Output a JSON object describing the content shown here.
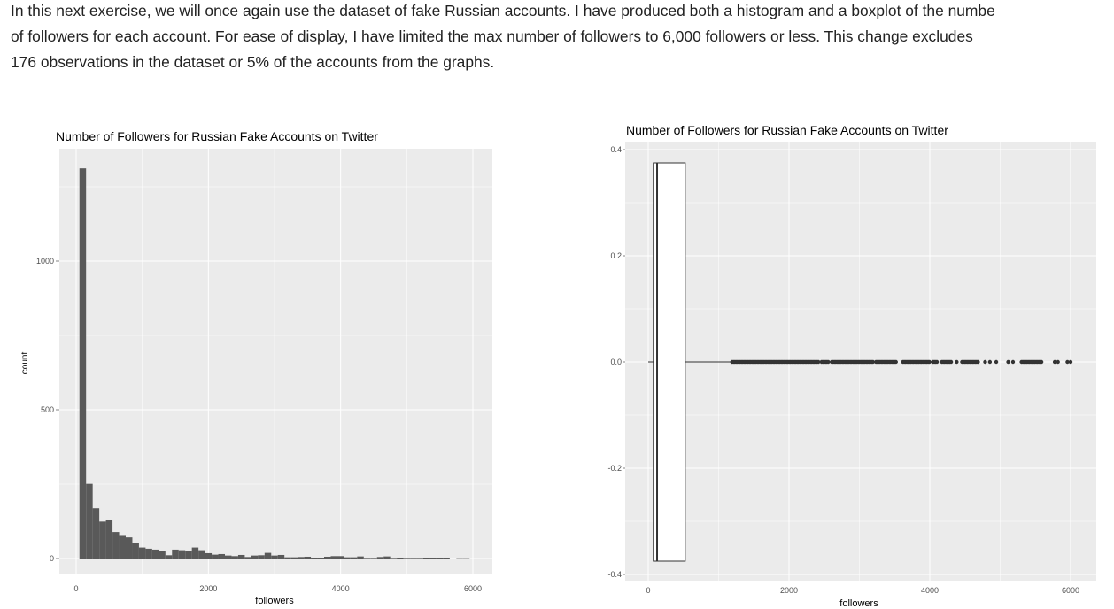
{
  "intro": {
    "lines": [
      "In this next exercise, we will once again use the dataset of fake Russian accounts. I have produced both a histogram and a boxplot of the numbe",
      "of followers for each account. For ease of display, I have limited the max number of followers to 6,000 followers or less. This change excludes",
      "176 observations in the dataset or 5% of the accounts from the graphs."
    ]
  },
  "colors": {
    "panel": "#ebebeb",
    "grid": "#ffffff",
    "bar": "#595959",
    "box_fill": "#ffffff",
    "box_line": "#333333"
  },
  "chart_data": [
    {
      "type": "bar",
      "subtype": "histogram",
      "title": "Number of Followers for Russian Fake Accounts on Twitter",
      "xlabel": "followers",
      "ylabel": "count",
      "xlim": [
        -300,
        6300
      ],
      "ylim": [
        -60,
        1380
      ],
      "xticks": [
        "0",
        "2000",
        "4000",
        "6000"
      ],
      "yticks": [
        "0",
        "500",
        "1000"
      ],
      "bin_width": 100,
      "bin_start": 50,
      "counts": [
        1312,
        251,
        169,
        124,
        130,
        89,
        79,
        71,
        52,
        37,
        33,
        30,
        25,
        11,
        30,
        28,
        25,
        37,
        28,
        18,
        13,
        15,
        10,
        8,
        12,
        5,
        10,
        11,
        19,
        10,
        12,
        4,
        4,
        5,
        6,
        3,
        3,
        6,
        8,
        8,
        4,
        4,
        7,
        2,
        2,
        5,
        7,
        2,
        3,
        2,
        2,
        2,
        3,
        3,
        3,
        3,
        0,
        1,
        1
      ],
      "grid": true
    },
    {
      "type": "boxplot",
      "title": "Number of Followers for Russian Fake Accounts on Twitter",
      "xlabel": "followers",
      "ylabel": "",
      "xlim": [
        -300,
        6300
      ],
      "ylim": [
        -0.42,
        0.42
      ],
      "xticks": [
        "0",
        "2000",
        "4000",
        "6000"
      ],
      "yticks": [
        "0.4",
        "0.2",
        "0.0",
        "-0.2",
        "-0.4"
      ],
      "whisker_low": 0,
      "q1": 72,
      "median": 126,
      "q3": 526,
      "whisker_high": 1191,
      "box_half_height": 0.375,
      "outlier_ranges": [
        [
          1191,
          2427
        ],
        [
          2463,
          2575
        ],
        [
          2607,
          3200
        ],
        [
          3236,
          3537
        ],
        [
          3618,
          4000
        ],
        [
          4045,
          4103
        ],
        [
          4171,
          4314
        ],
        [
          4382,
          4382
        ],
        [
          4458,
          4696
        ],
        [
          4786,
          4786
        ],
        [
          4854,
          4854
        ],
        [
          4944,
          4944
        ],
        [
          5114,
          5114
        ],
        [
          5182,
          5182
        ],
        [
          5303,
          5595
        ],
        [
          5775,
          5775
        ],
        [
          5820,
          5820
        ],
        [
          5955,
          5955
        ],
        [
          6000,
          6000
        ]
      ],
      "grid": true
    }
  ]
}
